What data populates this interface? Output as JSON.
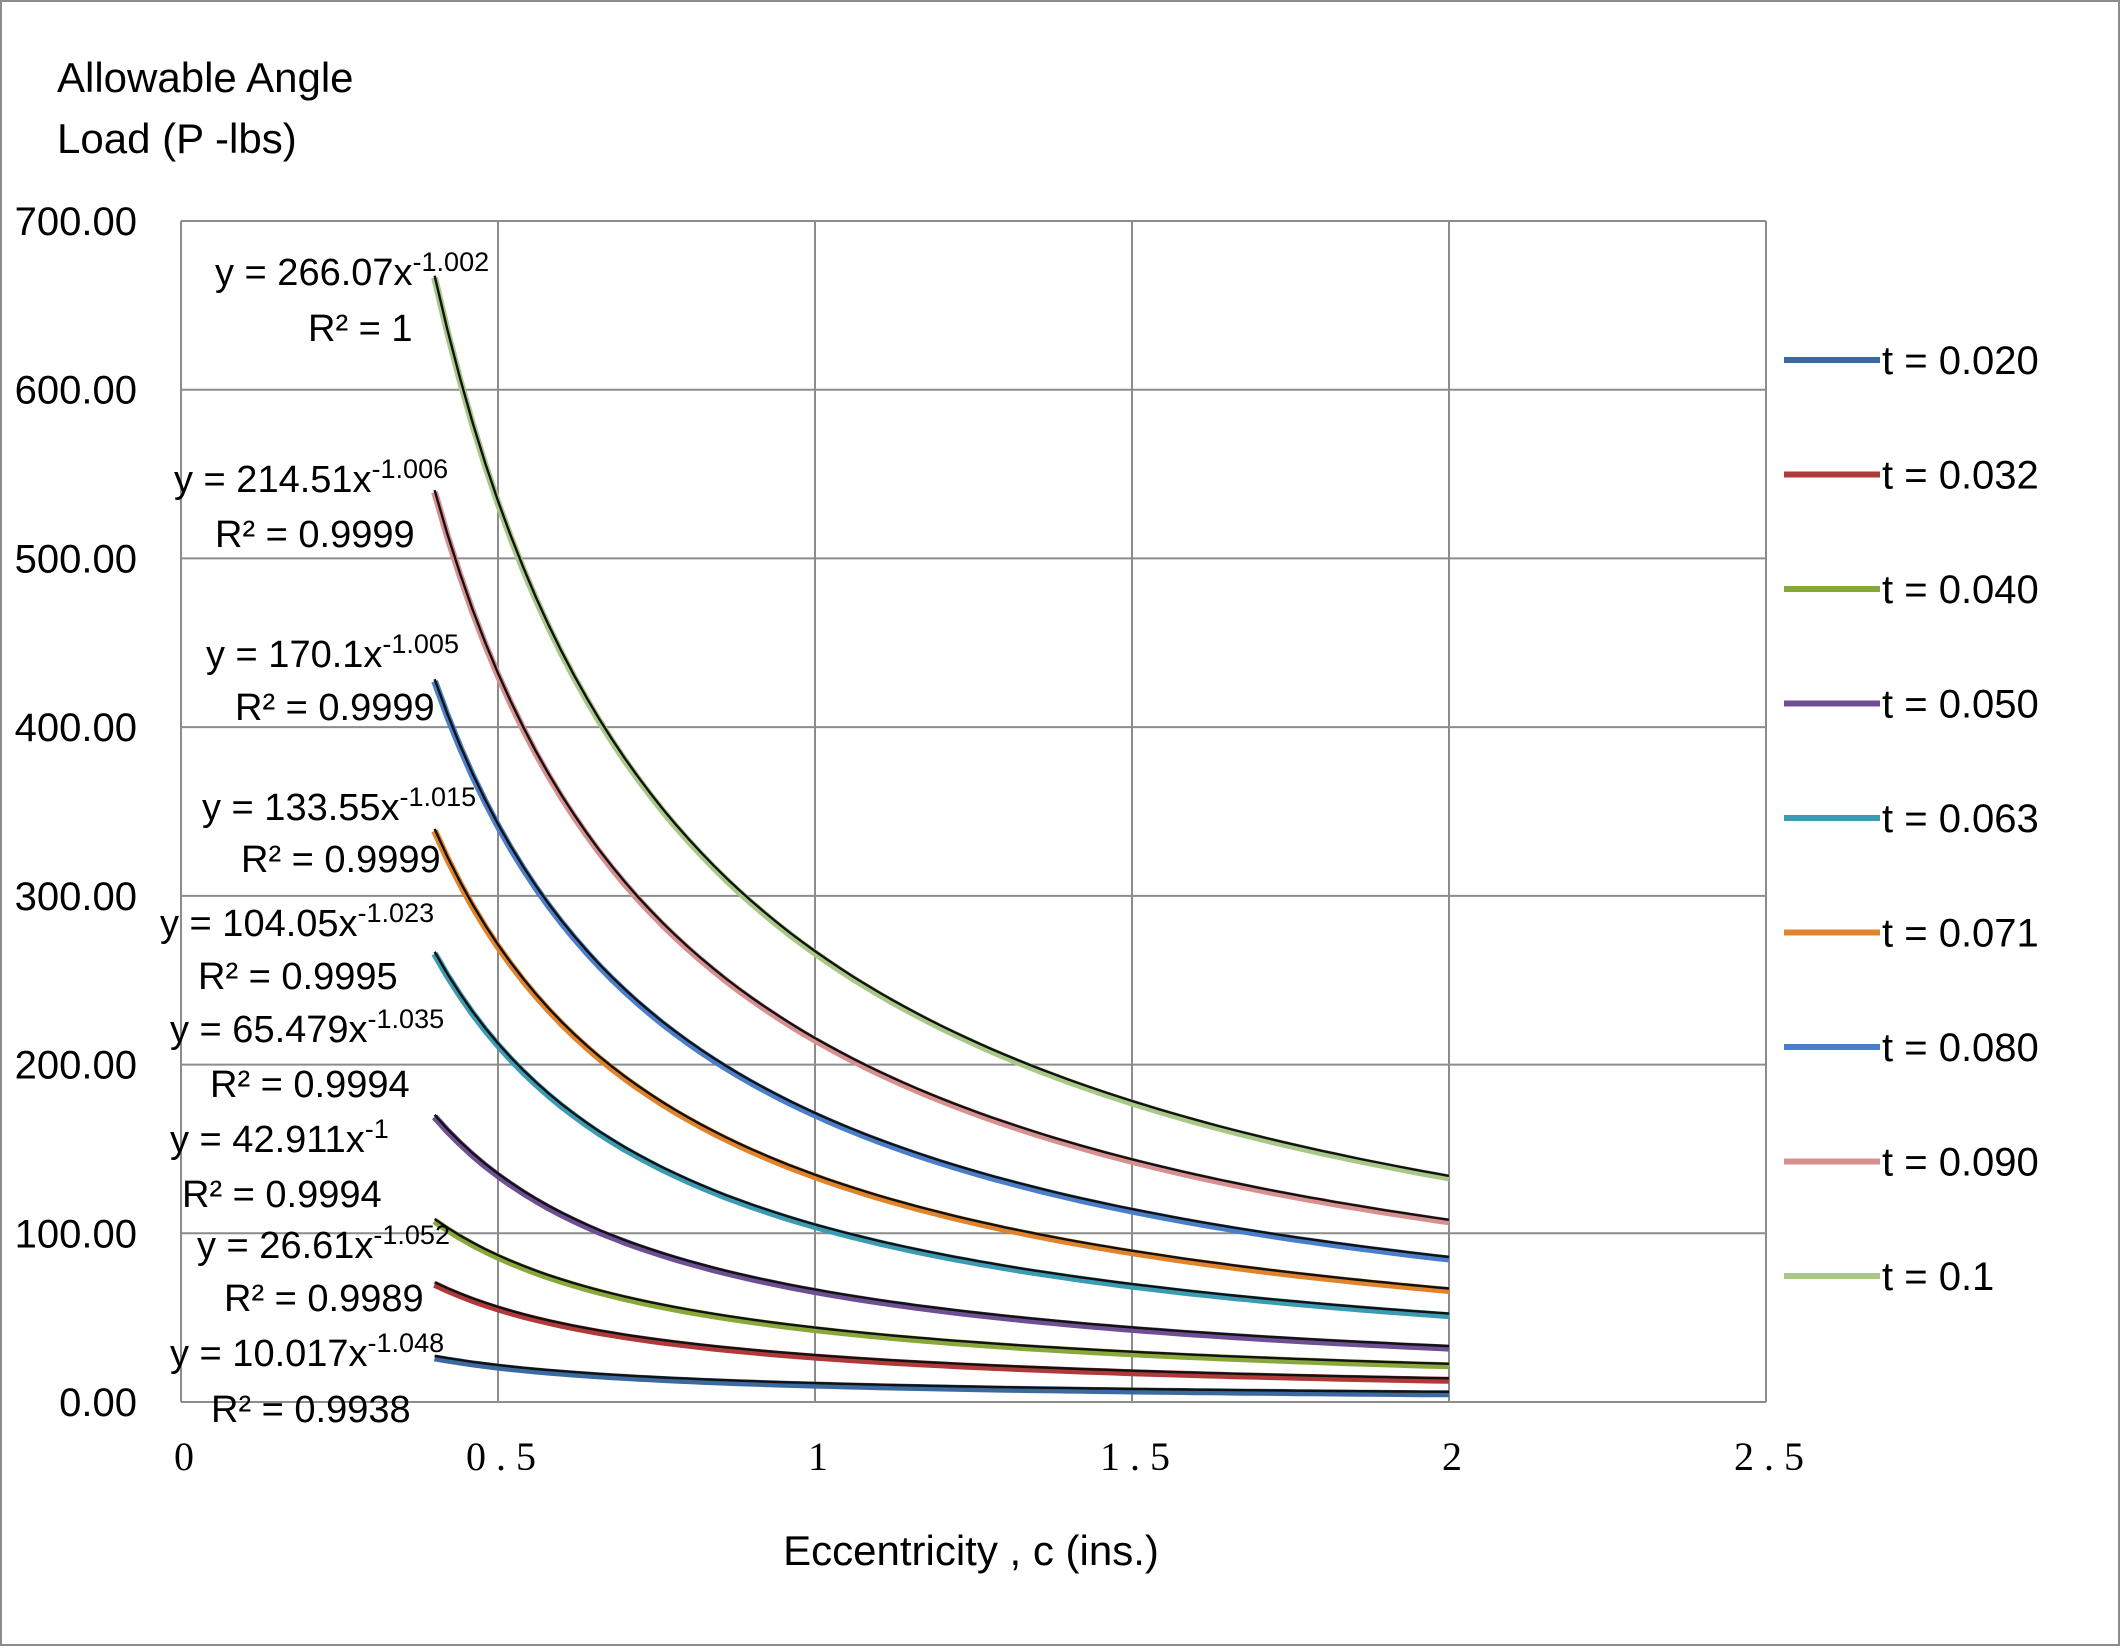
{
  "chart_data": {
    "type": "line",
    "ylabel": [
      "Allowable Angle",
      "Load (P -lbs)"
    ],
    "xlabel": "Eccentricity , c (ins.)",
    "xlim": [
      0,
      2.5
    ],
    "ylim": [
      0,
      700
    ],
    "x_ticks": [
      {
        "value": 0,
        "label": "0"
      },
      {
        "value": 0.5,
        "label": "0.5"
      },
      {
        "value": 1,
        "label": "1"
      },
      {
        "value": 1.5,
        "label": "1.5"
      },
      {
        "value": 2,
        "label": "2"
      },
      {
        "value": 2.5,
        "label": "2.5"
      }
    ],
    "y_ticks": [
      {
        "value": 0,
        "label": "0.00"
      },
      {
        "value": 100,
        "label": "100.00"
      },
      {
        "value": 200,
        "label": "200.00"
      },
      {
        "value": 300,
        "label": "300.00"
      },
      {
        "value": 400,
        "label": "400.00"
      },
      {
        "value": 500,
        "label": "500.00"
      },
      {
        "value": 600,
        "label": "600.00"
      },
      {
        "value": 700,
        "label": "700.00"
      }
    ],
    "grid": true,
    "legend_position": "right",
    "x_range": [
      0.4,
      2
    ],
    "series": [
      {
        "name": "t = 0.020",
        "color": "#3b6aa0",
        "coef": 10.017,
        "exp": -1.048,
        "eq": "y = 10.017x",
        "eq_exp": "-1.048",
        "r2": "R² = 0.9938"
      },
      {
        "name": "t = 0.032",
        "color": "#b03a3a",
        "coef": 26.61,
        "exp": -1.052,
        "eq": "y = 26.61x",
        "eq_exp": "-1.052",
        "r2": "R² = 0.9989"
      },
      {
        "name": "t = 0.040",
        "color": "#88a83a",
        "coef": 42.911,
        "exp": -1.0,
        "eq": "y = 42.911x",
        "eq_exp": "-1",
        "r2": "R² = 0.9994"
      },
      {
        "name": "t = 0.050",
        "color": "#6e4f94",
        "coef": 65.479,
        "exp": -1.035,
        "eq": "y = 65.479x",
        "eq_exp": "-1.035",
        "r2": "R² = 0.9994"
      },
      {
        "name": "t = 0.063",
        "color": "#3a9bb2",
        "coef": 104.05,
        "exp": -1.023,
        "eq": "y = 104.05x",
        "eq_exp": "-1.023",
        "r2": "R² = 0.9995"
      },
      {
        "name": "t = 0.071",
        "color": "#e0832a",
        "coef": 133.55,
        "exp": -1.015,
        "eq": "y = 133.55x",
        "eq_exp": "-1.015",
        "r2": "R² = 0.9999"
      },
      {
        "name": "t = 0.080",
        "color": "#4a7ec8",
        "coef": 170.1,
        "exp": -1.005,
        "eq": "y = 170.1x",
        "eq_exp": "-1.005",
        "r2": "R² = 0.9999"
      },
      {
        "name": "t = 0.090",
        "color": "#d88f8f",
        "coef": 214.51,
        "exp": -1.006,
        "eq": "y = 214.51x",
        "eq_exp": "-1.006",
        "r2": "R² = 0.9999"
      },
      {
        "name": "t = 0.1",
        "color": "#a8c888",
        "coef": 266.07,
        "exp": -1.002,
        "eq": "y = 266.07x",
        "eq_exp": "-1.002",
        "r2": "R² = 1"
      }
    ]
  }
}
